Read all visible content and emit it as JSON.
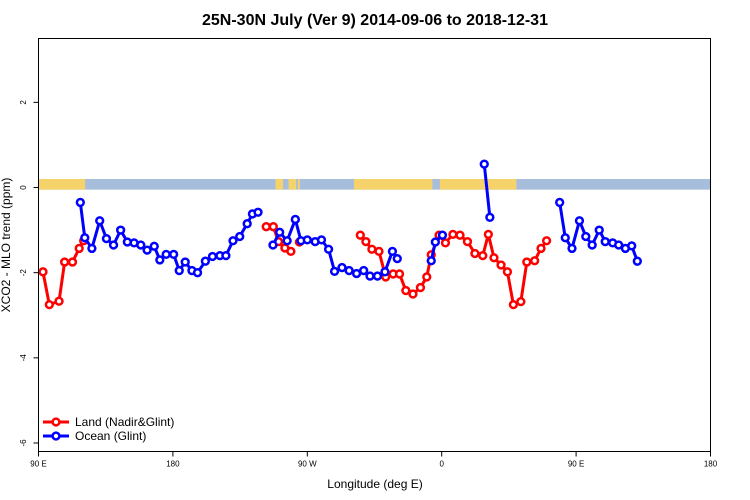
{
  "chart_data": {
    "type": "line",
    "title": "25N-30N July (Ver 9)   2014-09-06 to 2018-12-31",
    "xlabel": "Longitude (deg E)",
    "ylabel": "XCO2 - MLO trend (ppm)",
    "xlim": [
      90,
      270
    ],
    "ylim": [
      -6.2,
      3.5
    ],
    "x_ticks": [
      90,
      126,
      162,
      198,
      234,
      270
    ],
    "x_tick_labels": [
      "90 E",
      "180",
      "90 W",
      "0",
      "90 E",
      "180"
    ],
    "y_ticks": [
      -6,
      -4,
      -2,
      0,
      2
    ],
    "y_tick_labels": [
      "-6",
      "-4",
      "-2",
      "0",
      "2"
    ],
    "grid": false,
    "legend_position": "bottom-left",
    "land_colors": {
      "land": "#f5d36a",
      "ocean": "#a7bddc"
    },
    "land_bands": [
      [
        90,
        102.5
      ],
      [
        153.5,
        155.5
      ],
      [
        157,
        159
      ],
      [
        159.5,
        160
      ],
      [
        174.5,
        195.5
      ],
      [
        197.5,
        218
      ]
    ],
    "series": [
      {
        "name": "Land (Nadir&Glint)",
        "color": "#ff0000",
        "segments": [
          [
            [
              91.2,
              -1.98
            ],
            [
              92.9,
              -2.75
            ],
            [
              95.5,
              -2.67
            ],
            [
              97.0,
              -1.75
            ],
            [
              99.1,
              -1.75
            ],
            [
              100.9,
              -1.43
            ],
            [
              102.1,
              -1.25
            ]
          ],
          [
            [
              151.0,
              -0.92
            ],
            [
              152.9,
              -0.92
            ],
            [
              154.3,
              -1.27
            ],
            [
              156.0,
              -1.42
            ],
            [
              157.6,
              -1.5
            ]
          ],
          [
            [
              159.9,
              -1.28
            ]
          ],
          [
            [
              176.2,
              -1.12
            ],
            [
              177.7,
              -1.27
            ],
            [
              179.3,
              -1.45
            ],
            [
              181.2,
              -1.5
            ],
            [
              183.0,
              -2.1
            ],
            [
              185.0,
              -2.03
            ],
            [
              186.7,
              -2.03
            ],
            [
              188.4,
              -2.42
            ],
            [
              190.3,
              -2.5
            ],
            [
              192.3,
              -2.35
            ],
            [
              194.0,
              -2.1
            ],
            [
              195.2,
              -1.58
            ],
            [
              197.3,
              -1.12
            ],
            [
              199.0,
              -1.3
            ],
            [
              201.0,
              -1.1
            ],
            [
              202.9,
              -1.12
            ],
            [
              204.9,
              -1.27
            ],
            [
              206.9,
              -1.55
            ],
            [
              209.0,
              -1.6
            ],
            [
              210.5,
              -1.1
            ],
            [
              212.0,
              -1.65
            ],
            [
              213.9,
              -1.82
            ],
            [
              215.6,
              -1.98
            ],
            [
              217.2,
              -2.75
            ],
            [
              219.2,
              -2.68
            ],
            [
              220.8,
              -1.75
            ],
            [
              222.9,
              -1.72
            ],
            [
              224.6,
              -1.43
            ],
            [
              226.1,
              -1.25
            ]
          ]
        ]
      },
      {
        "name": "Ocean (Glint)",
        "color": "#0000ff",
        "segments": [
          [
            [
              101.2,
              -0.35
            ],
            [
              102.4,
              -1.18
            ],
            [
              104.3,
              -1.43
            ],
            [
              106.4,
              -0.78
            ],
            [
              108.2,
              -1.2
            ],
            [
              110.1,
              -1.35
            ],
            [
              112.0,
              -1.0
            ],
            [
              113.8,
              -1.28
            ],
            [
              115.6,
              -1.3
            ],
            [
              117.4,
              -1.35
            ],
            [
              119.1,
              -1.47
            ],
            [
              121.0,
              -1.38
            ],
            [
              122.5,
              -1.7
            ],
            [
              124.2,
              -1.57
            ],
            [
              126.2,
              -1.57
            ],
            [
              127.7,
              -1.95
            ],
            [
              129.3,
              -1.75
            ],
            [
              131.1,
              -1.95
            ],
            [
              132.6,
              -2.0
            ],
            [
              134.7,
              -1.73
            ],
            [
              136.6,
              -1.62
            ],
            [
              138.6,
              -1.6
            ],
            [
              140.2,
              -1.6
            ],
            [
              142.1,
              -1.25
            ],
            [
              143.9,
              -1.15
            ],
            [
              145.9,
              -0.85
            ],
            [
              147.3,
              -0.62
            ],
            [
              148.8,
              -0.58
            ]
          ],
          [
            [
              152.8,
              -1.35
            ],
            [
              154.6,
              -1.05
            ],
            [
              156.6,
              -1.25
            ],
            [
              158.8,
              -0.75
            ],
            [
              160.3,
              -1.25
            ],
            [
              162.0,
              -1.23
            ],
            [
              164.1,
              -1.27
            ],
            [
              165.8,
              -1.23
            ],
            [
              167.7,
              -1.45
            ],
            [
              169.3,
              -1.97
            ],
            [
              171.3,
              -1.88
            ],
            [
              173.2,
              -1.95
            ],
            [
              175.2,
              -2.02
            ],
            [
              177.1,
              -1.95
            ],
            [
              178.8,
              -2.08
            ],
            [
              180.8,
              -2.08
            ],
            [
              182.8,
              -1.98
            ],
            [
              184.8,
              -1.5
            ],
            [
              186.1,
              -1.67
            ]
          ],
          [
            [
              195.2,
              -1.72
            ],
            [
              196.3,
              -1.28
            ],
            [
              198.2,
              -1.12
            ]
          ],
          [
            [
              209.4,
              0.55
            ],
            [
              210.9,
              -0.7
            ]
          ],
          [
            [
              229.6,
              -0.35
            ],
            [
              231.1,
              -1.18
            ],
            [
              232.9,
              -1.43
            ],
            [
              234.9,
              -0.78
            ],
            [
              236.6,
              -1.15
            ],
            [
              238.3,
              -1.35
            ],
            [
              240.2,
              -1.0
            ],
            [
              241.8,
              -1.27
            ],
            [
              243.8,
              -1.3
            ],
            [
              245.4,
              -1.35
            ],
            [
              247.2,
              -1.43
            ],
            [
              248.9,
              -1.37
            ],
            [
              250.4,
              -1.73
            ]
          ]
        ]
      }
    ]
  }
}
